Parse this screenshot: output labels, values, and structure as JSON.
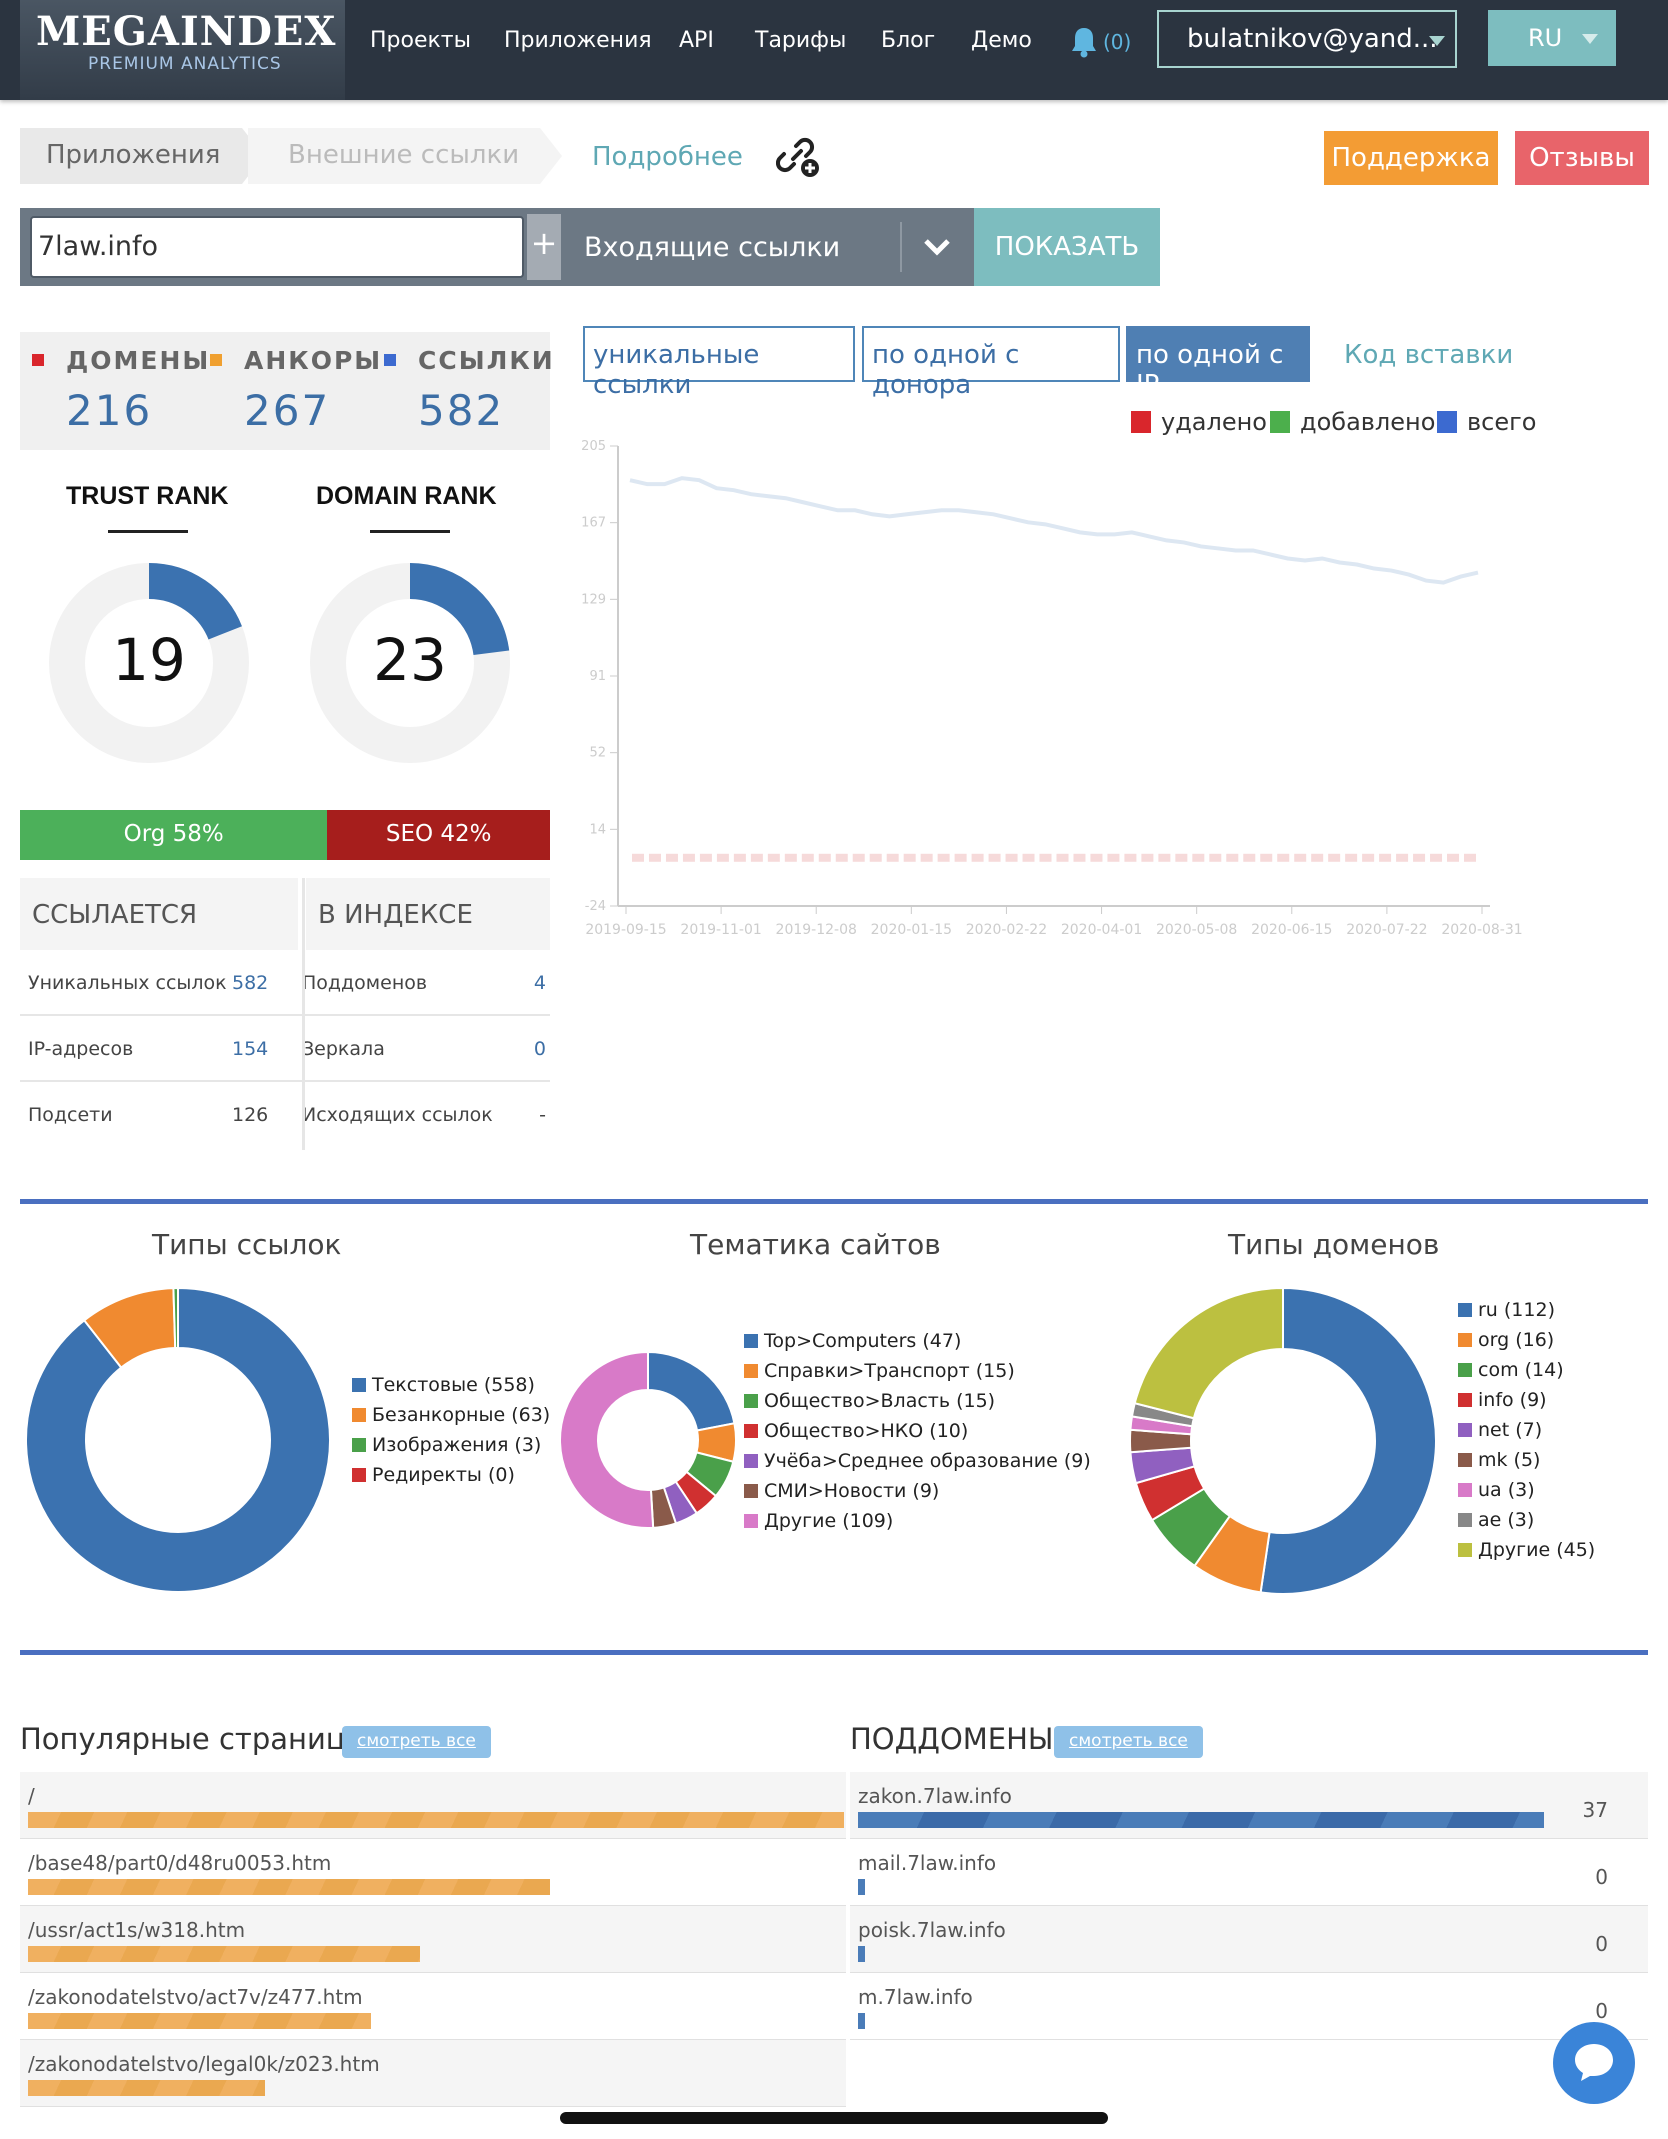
{
  "header": {
    "logo_main": "MEGAINDEX",
    "logo_sub": "PREMIUM ANALYTICS",
    "nav": [
      "Проекты",
      "Приложения",
      "API",
      "Тарифы",
      "Блог",
      "Демо"
    ],
    "notifications": "(0)",
    "user": "bulatnikov@yand...",
    "lang": "RU"
  },
  "breadcrumbs": [
    "Приложения",
    "Внешние ссылки"
  ],
  "more_link": "Подробнее",
  "support_btn": "Поддержка",
  "reviews_btn": "Отзывы",
  "search": {
    "value": "7law.info",
    "plus": "+",
    "mode": "Входящие ссылки",
    "show_btn": "ПОКАЗАТЬ"
  },
  "stats": [
    {
      "label": "ДОМЕНЫ",
      "value": "216",
      "color": "#d9262c"
    },
    {
      "label": "АНКОРЫ",
      "value": "267",
      "color": "#f0a030"
    },
    {
      "label": "ССЫЛКИ",
      "value": "582",
      "color": "#3c6ad0"
    }
  ],
  "ranks": [
    {
      "label": "TRUST RANK",
      "value": "19",
      "fraction": 0.19
    },
    {
      "label": "DOMAIN RANK",
      "value": "23",
      "fraction": 0.23
    }
  ],
  "org_seo": {
    "org": "Org 58%",
    "seo": "SEO 42%",
    "org_pct": 58
  },
  "table": {
    "left_header": "ССЫЛАЕТСЯ",
    "right_header": "В ИНДЕКСЕ",
    "rows": [
      {
        "l": "Уникальных ссылок",
        "lv": "582",
        "r": "Поддоменов",
        "rv": "4"
      },
      {
        "l": "IP-адресов",
        "lv": "154",
        "r": "Зеркала",
        "rv": "0"
      },
      {
        "l": "Подсети",
        "lv": "126",
        "r": "Исходящих ссылок",
        "rv": "-"
      }
    ]
  },
  "chart_tabs": [
    "уникальные ссылки",
    "по одной с донора",
    "по одной с IP"
  ],
  "code_link": "Код вставки",
  "chart_data": [
    {
      "type": "line",
      "title": "",
      "legend": [
        {
          "name": "удалено",
          "color": "#d9262c"
        },
        {
          "name": "добавлено",
          "color": "#4caf4c"
        },
        {
          "name": "всего",
          "color": "#3c6ad0"
        }
      ],
      "y_ticks": [
        "205",
        "167",
        "129",
        "91",
        "52",
        "14",
        "-24"
      ],
      "ylim": [
        -24,
        205
      ],
      "x_ticks": [
        "2019-09-15",
        "2019-11-01",
        "2019-12-08",
        "2020-01-15",
        "2020-02-22",
        "2020-04-01",
        "2020-05-08",
        "2020-06-15",
        "2020-07-22",
        "2020-08-31"
      ],
      "series": [
        {
          "name": "всего",
          "values": [
            188,
            186,
            186,
            189,
            188,
            184,
            183,
            181,
            180,
            179,
            177,
            175,
            173,
            173,
            171,
            170,
            171,
            172,
            173,
            173,
            172,
            171,
            169,
            167,
            166,
            164,
            162,
            161,
            161,
            162,
            160,
            158,
            157,
            155,
            154,
            153,
            153,
            151,
            149,
            148,
            149,
            147,
            146,
            144,
            143,
            141,
            138,
            137,
            140,
            142
          ]
        }
      ]
    },
    {
      "type": "pie",
      "title": "Типы ссылок",
      "categories": [
        "Текстовые (558)",
        "Безанкорные (63)",
        "Изображения (3)",
        "Редиректы (0)"
      ],
      "values": [
        558,
        63,
        3,
        0
      ],
      "colors": [
        "#3b72b0",
        "#f08a30",
        "#4aa04a",
        "#d03030"
      ]
    },
    {
      "type": "pie",
      "title": "Тематика сайтов",
      "categories": [
        "Top>Computers (47)",
        "Справки>Транспорт (15)",
        "Общество>Власть (15)",
        "Общество>НКО (10)",
        "Учёба>Среднее образование (9)",
        "СМИ>Новости (9)",
        "Другие (109)"
      ],
      "values": [
        47,
        15,
        15,
        10,
        9,
        9,
        109
      ],
      "colors": [
        "#3b72b0",
        "#f08a30",
        "#4aa04a",
        "#d03030",
        "#9060c0",
        "#8a5a4a",
        "#d87ac8"
      ]
    },
    {
      "type": "pie",
      "title": "Типы доменов",
      "categories": [
        "ru (112)",
        "org (16)",
        "com (14)",
        "info (9)",
        "net (7)",
        "mk (5)",
        "ua (3)",
        "ae (3)",
        "Другие (45)"
      ],
      "values": [
        112,
        16,
        14,
        9,
        7,
        5,
        3,
        3,
        45
      ],
      "colors": [
        "#3b72b0",
        "#f08a30",
        "#4aa04a",
        "#d03030",
        "#9060c0",
        "#8a5a4a",
        "#d87ac8",
        "#888888",
        "#bcc040"
      ]
    }
  ],
  "popular": {
    "title": "Популярные страницы",
    "see_all": "смотреть все",
    "rows": [
      {
        "url": "/",
        "share": 1.0
      },
      {
        "url": "/base48/part0/d48ru0053.htm",
        "share": 0.64
      },
      {
        "url": "/ussr/act1s/w318.htm",
        "share": 0.48
      },
      {
        "url": "/zakonodatelstvo/act7v/z477.htm",
        "share": 0.42
      },
      {
        "url": "/zakonodatelstvo/legal0k/z023.htm",
        "share": 0.29
      }
    ]
  },
  "subdomains": {
    "title": "ПОДДОМЕНЫ",
    "see_all": "смотреть все",
    "rows": [
      {
        "name": "zakon.7law.info",
        "count": "37",
        "share": 1.0
      },
      {
        "name": "mail.7law.info",
        "count": "0",
        "share": 0.01
      },
      {
        "name": "poisk.7law.info",
        "count": "0",
        "share": 0.01
      },
      {
        "name": "m.7law.info",
        "count": "0",
        "share": 0.01
      }
    ]
  }
}
